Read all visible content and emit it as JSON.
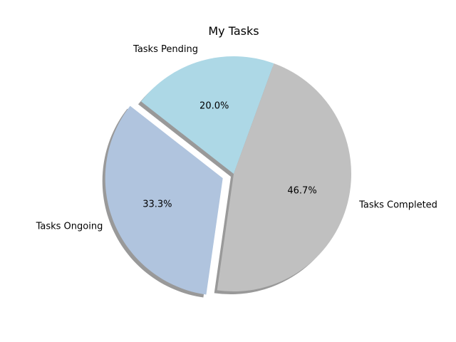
{
  "chart_data": {
    "type": "pie",
    "title": "My Tasks",
    "slices": [
      {
        "label": "Tasks Pending",
        "value": 20.0,
        "percent_label": "20.0%",
        "color": "#add8e6",
        "exploded": false
      },
      {
        "label": "Tasks Ongoing",
        "value": 33.3,
        "percent_label": "33.3%",
        "color": "#b0c4de",
        "exploded": true
      },
      {
        "label": "Tasks Completed",
        "value": 46.7,
        "percent_label": "46.7%",
        "color": "#c0c0c0",
        "exploded": false
      }
    ],
    "shadow": true,
    "legend": "none"
  }
}
